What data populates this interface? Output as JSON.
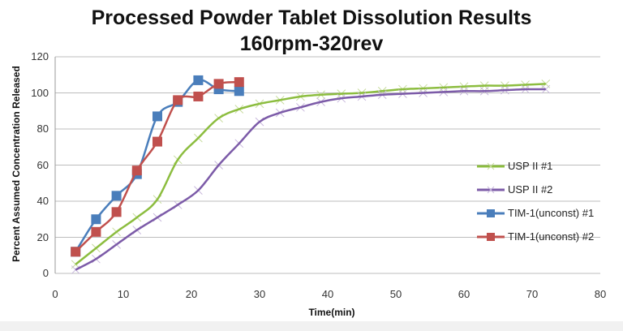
{
  "chart_data": {
    "type": "line",
    "title": "Processed Powder Tablet Dissolution Results",
    "subtitle": "160rpm-320rev",
    "xlabel": "Time(min)",
    "ylabel": "Percent Assumed Concentration Released",
    "xlim": [
      0,
      80
    ],
    "ylim": [
      0,
      120
    ],
    "xticks": [
      0,
      10,
      20,
      30,
      40,
      50,
      60,
      70,
      80
    ],
    "yticks": [
      0,
      20,
      40,
      60,
      80,
      100,
      120
    ],
    "grid": "horizontal",
    "legend_position": "right",
    "series": [
      {
        "name": "USP II #1",
        "color": "#8cbd3f",
        "marker": "x",
        "x": [
          3,
          6,
          9,
          12,
          15,
          18,
          21,
          24,
          27,
          30,
          33,
          36,
          39,
          42,
          45,
          48,
          51,
          54,
          57,
          60,
          63,
          66,
          69,
          72
        ],
        "y": [
          5,
          14,
          23,
          31,
          41,
          63,
          75,
          86,
          91,
          94,
          96,
          98,
          99,
          99.5,
          100,
          101,
          102,
          102.5,
          103,
          103.5,
          104,
          104,
          104.5,
          105
        ]
      },
      {
        "name": "USP II #2",
        "color": "#7c5ba8",
        "marker": "x",
        "x": [
          3,
          6,
          9,
          12,
          15,
          18,
          21,
          24,
          27,
          30,
          33,
          36,
          39,
          42,
          45,
          48,
          51,
          54,
          57,
          60,
          63,
          66,
          69,
          72
        ],
        "y": [
          2,
          8,
          16,
          24,
          31,
          38,
          46,
          60,
          72,
          84,
          89,
          92,
          95,
          97,
          98,
          99,
          99.5,
          100,
          100.5,
          101,
          101,
          101.5,
          102,
          102
        ]
      },
      {
        "name": "TIM-1(unconst) #1",
        "color": "#4a7ebb",
        "marker": "square",
        "x": [
          3,
          6,
          9,
          12,
          15,
          18,
          21,
          24,
          27
        ],
        "y": [
          12,
          30,
          43,
          55,
          87,
          95,
          107,
          102,
          101
        ]
      },
      {
        "name": "TIM-1(unconst) #2",
        "color": "#c0504d",
        "marker": "square",
        "x": [
          3,
          6,
          9,
          12,
          15,
          18,
          21,
          24,
          27
        ],
        "y": [
          12,
          23,
          34,
          57,
          73,
          96,
          98,
          105,
          106
        ]
      }
    ]
  },
  "labels": {
    "title": "Processed Powder Tablet Dissolution Results",
    "subtitle": "160rpm-320rev",
    "xlabel": "Time(min)",
    "ylabel": "Percent Assumed Concentration Released",
    "legend": [
      "USP II #1",
      "USP II #2",
      "TIM-1(unconst) #1",
      "TIM-1(unconst) #2"
    ]
  }
}
